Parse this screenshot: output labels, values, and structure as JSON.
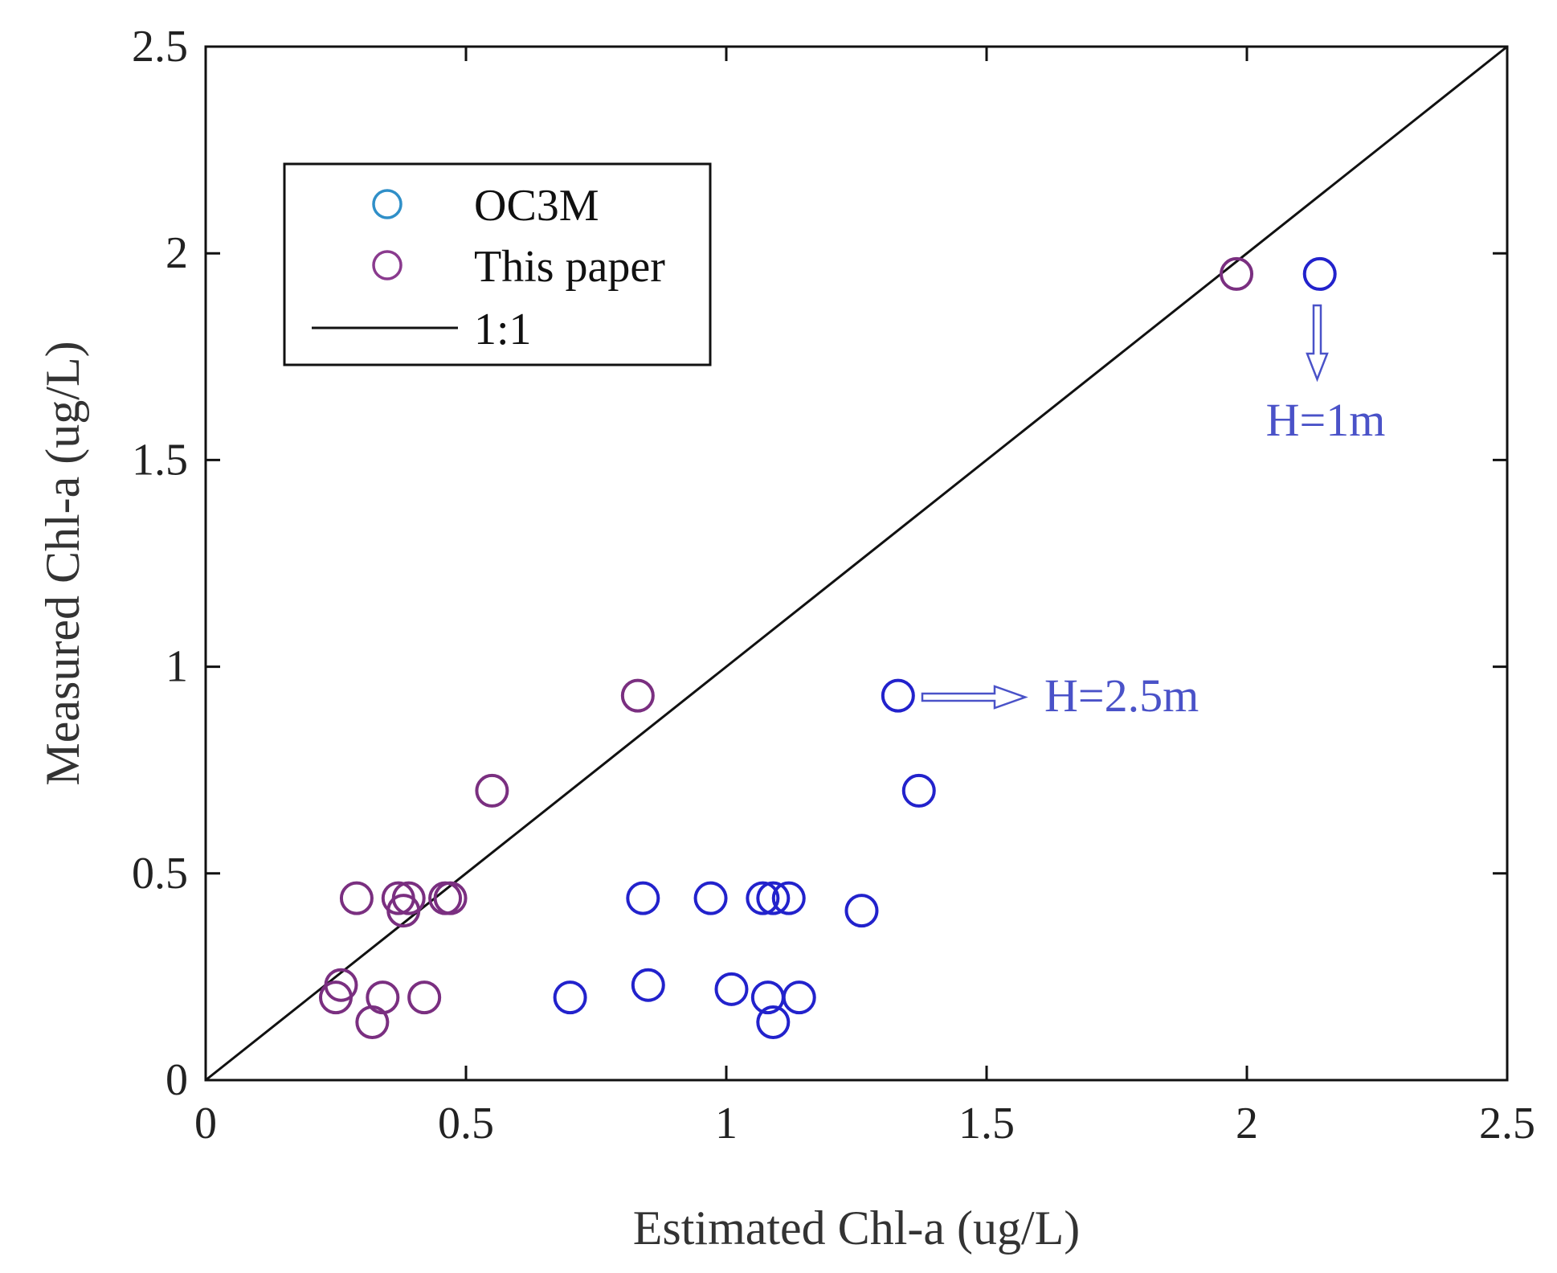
{
  "chart_data": {
    "type": "scatter",
    "title": "",
    "xlabel": "Estimated Chl-a (ug/L)",
    "ylabel": "Measured Chl-a (ug/L)",
    "xlim": [
      0,
      2.5
    ],
    "ylim": [
      0,
      2.5
    ],
    "xticks": [
      "0",
      "0.5",
      "1",
      "1.5",
      "2",
      "2.5"
    ],
    "yticks": [
      "0",
      "0.5",
      "1",
      "1.5",
      "2",
      "2.5"
    ],
    "xtick_values": [
      0,
      0.5,
      1,
      1.5,
      2,
      2.5
    ],
    "ytick_values": [
      0,
      0.5,
      1,
      1.5,
      2,
      2.5
    ],
    "grid": false,
    "legend_position": "top-left",
    "series": [
      {
        "name": "OC3M",
        "legend_color": "#2f8fc8",
        "color": "#2222cc",
        "marker": "open-circle",
        "points": [
          {
            "x": 2.14,
            "y": 1.95
          },
          {
            "x": 1.33,
            "y": 0.93
          },
          {
            "x": 1.37,
            "y": 0.7
          },
          {
            "x": 0.84,
            "y": 0.44
          },
          {
            "x": 0.97,
            "y": 0.44
          },
          {
            "x": 1.07,
            "y": 0.44
          },
          {
            "x": 1.09,
            "y": 0.44
          },
          {
            "x": 1.12,
            "y": 0.44
          },
          {
            "x": 1.26,
            "y": 0.41
          },
          {
            "x": 0.7,
            "y": 0.2
          },
          {
            "x": 0.85,
            "y": 0.23
          },
          {
            "x": 1.01,
            "y": 0.22
          },
          {
            "x": 1.08,
            "y": 0.2
          },
          {
            "x": 1.14,
            "y": 0.2
          },
          {
            "x": 1.09,
            "y": 0.14
          }
        ]
      },
      {
        "name": "This paper",
        "legend_color": "#8a3a8e",
        "color": "#7a2f80",
        "marker": "open-circle",
        "points": [
          {
            "x": 1.98,
            "y": 1.95
          },
          {
            "x": 0.83,
            "y": 0.93
          },
          {
            "x": 0.55,
            "y": 0.7
          },
          {
            "x": 0.29,
            "y": 0.44
          },
          {
            "x": 0.37,
            "y": 0.44
          },
          {
            "x": 0.38,
            "y": 0.41
          },
          {
            "x": 0.39,
            "y": 0.44
          },
          {
            "x": 0.46,
            "y": 0.44
          },
          {
            "x": 0.47,
            "y": 0.44
          },
          {
            "x": 0.25,
            "y": 0.2
          },
          {
            "x": 0.26,
            "y": 0.23
          },
          {
            "x": 0.34,
            "y": 0.2
          },
          {
            "x": 0.42,
            "y": 0.2
          },
          {
            "x": 0.32,
            "y": 0.14
          }
        ]
      }
    ],
    "reference_line": {
      "name": "1:1",
      "color": "#111111",
      "from": [
        0,
        0
      ],
      "to": [
        2.5,
        2.5
      ]
    },
    "annotations": [
      {
        "text": "H=1m",
        "color": "#4a52c8",
        "arrow": "down",
        "points_to": {
          "x": 2.14,
          "y": 1.95
        }
      },
      {
        "text": "H=2.5m",
        "color": "#4a52c8",
        "arrow": "right",
        "points_from": {
          "x": 1.33,
          "y": 0.93
        }
      }
    ]
  }
}
